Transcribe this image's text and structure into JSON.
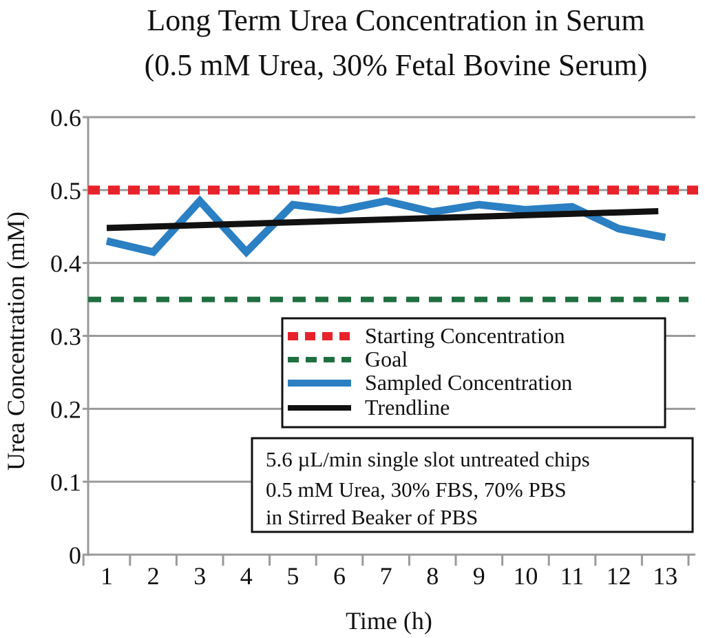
{
  "chart_data": {
    "type": "line",
    "title_lines": [
      "Long Term Urea Concentration in Serum",
      "(0.5 mM Urea, 30% Fetal Bovine Serum)"
    ],
    "xlabel": "Time (h)",
    "ylabel": "Urea Concentration (mM)",
    "x": [
      1,
      2,
      3,
      4,
      5,
      6,
      7,
      8,
      9,
      10,
      11,
      12,
      13
    ],
    "x_tick_labels": [
      "1",
      "2",
      "3",
      "4",
      "5",
      "6",
      "7",
      "8",
      "9",
      "10",
      "11",
      "12",
      "13"
    ],
    "y_tick_labels": [
      "0",
      "0.1",
      "0.2",
      "0.3",
      "0.4",
      "0.5",
      "0.6"
    ],
    "y_ticks": [
      0,
      0.1,
      0.2,
      0.3,
      0.4,
      0.5,
      0.6
    ],
    "ylim": [
      0,
      0.6
    ],
    "grid": true,
    "series": [
      {
        "name": "Starting Concentration",
        "kind": "constant",
        "value": 0.5,
        "color": "#e8222a",
        "style": "dotted"
      },
      {
        "name": "Goal",
        "kind": "constant",
        "value": 0.35,
        "color": "#1f6f3f",
        "style": "dashed"
      },
      {
        "name": "Sampled Concentration",
        "kind": "data",
        "values": [
          0.43,
          0.415,
          0.485,
          0.415,
          0.48,
          0.472,
          0.485,
          0.47,
          0.48,
          0.473,
          0.477,
          0.447,
          0.435
        ],
        "color": "#2b7fc3",
        "style": "solid"
      },
      {
        "name": "Trendline",
        "kind": "linear",
        "start": 0.448,
        "end": 0.471,
        "color": "#111111",
        "style": "solid"
      }
    ],
    "legend_position": "center-right",
    "annotation_lines": [
      "5.6 µL/min single slot untreated chips",
      "0.5 mM Urea, 30% FBS, 70% PBS",
      "in Stirred Beaker of PBS"
    ]
  }
}
